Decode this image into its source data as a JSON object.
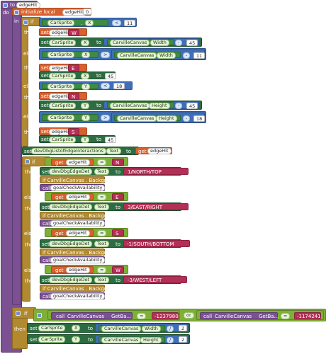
{
  "proc": {
    "to": "to",
    "name": "edgeHit",
    "do": "do"
  },
  "init": {
    "label": "initialize local",
    "var": "edgeHit",
    "to": "to",
    "value": "0",
    "in": "in"
  },
  "kw": {
    "if": "if",
    "then": "then",
    "else_if": "else if",
    "set": "set",
    "to": "to",
    "call": "call",
    "or": "or",
    "get": "get"
  },
  "props": {
    "x": "X",
    "y": "Y",
    "width": "Width",
    "height": "Height",
    "text": "Text",
    "background": "Background...",
    "get_bg": "GetBa..."
  },
  "comps": {
    "car": "CarSprite",
    "canvas": "CarvilleCanvas",
    "dbg_list": "devDbgListofEdgeInteractions",
    "dbg_det": "devDbgEdgeDet"
  },
  "ops": {
    "lt": "<",
    "gt": ">",
    "eq": "=",
    "minus": "-",
    "div": "/"
  },
  "nums": {
    "eleven": "11",
    "fortyfive": "45",
    "eighteen": "18",
    "two": "2"
  },
  "edges": {
    "w": "W",
    "e": "E",
    "n": "N",
    "s": "S"
  },
  "labels": {
    "north": "1/NORTH/TOP",
    "east": "3/EAST/RIGHT",
    "south": "-1/SOUTH/BOTTOM",
    "west": "-3/WEST/LEFT"
  },
  "if_bg_label": "if CarvilleCanvas . Backgro...",
  "goal": "goalCheckAvailability",
  "colors": {
    "c1": "-1237980",
    "c2": "-1174241"
  }
}
